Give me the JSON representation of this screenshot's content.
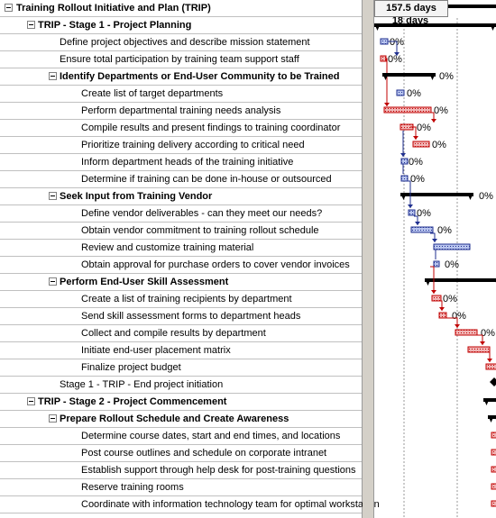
{
  "header": {
    "duration": "157.5 days",
    "duration_partial": "18 days"
  },
  "colors": {
    "summary": "#000000",
    "task_red": "#c00000",
    "task_blue": "#1f2f8f",
    "grid_line": "#c0c0c0"
  },
  "rows": [
    {
      "label": "Training Rollout Initiative and Plan (TRIP)",
      "summary": true,
      "pct": ""
    },
    {
      "label": "TRIP - Stage 1 - Project Planning",
      "summary": true,
      "pct": ""
    },
    {
      "label": "Define project objectives and describe mission statement",
      "summary": false,
      "pct": "0%"
    },
    {
      "label": "Ensure total participation by training team support staff",
      "summary": false,
      "pct": "0%"
    },
    {
      "label": "Identify Departments or End-User Community to be Trained",
      "summary": true,
      "pct": "0%"
    },
    {
      "label": "Create list of target departments",
      "summary": false,
      "pct": "0%"
    },
    {
      "label": "Perform departmental training needs analysis",
      "summary": false,
      "pct": "0%"
    },
    {
      "label": "Compile results and present findings to training coordinator",
      "summary": false,
      "pct": "0%"
    },
    {
      "label": "Prioritize training delivery according to critical need",
      "summary": false,
      "pct": "0%"
    },
    {
      "label": "Inform department heads of the training initiative",
      "summary": false,
      "pct": "0%"
    },
    {
      "label": "Determine if training can be done in-house or outsourced",
      "summary": false,
      "pct": "0%"
    },
    {
      "label": "Seek Input from Training Vendor",
      "summary": true,
      "pct": "0%"
    },
    {
      "label": "Define vendor deliverables - can they meet our needs?",
      "summary": false,
      "pct": "0%"
    },
    {
      "label": "Obtain vendor commitment to training rollout schedule",
      "summary": false,
      "pct": "0%"
    },
    {
      "label": "Review and customize training material",
      "summary": false,
      "pct": ""
    },
    {
      "label": "Obtain approval for purchase orders to cover vendor invoices",
      "summary": false,
      "pct": "0%"
    },
    {
      "label": "Perform End-User Skill Assessment",
      "summary": true,
      "pct": ""
    },
    {
      "label": "Create a list of training recipients by department",
      "summary": false,
      "pct": "0%"
    },
    {
      "label": "Send skill assessment forms to department heads",
      "summary": false,
      "pct": "0%"
    },
    {
      "label": "Collect and compile results by department",
      "summary": false,
      "pct": "0%"
    },
    {
      "label": "Initiate end-user placement matrix",
      "summary": false,
      "pct": ""
    },
    {
      "label": "Finalize project budget",
      "summary": false,
      "pct": ""
    },
    {
      "label": "Stage 1 - TRIP - End project initiation",
      "summary": false,
      "pct": ""
    },
    {
      "label": "TRIP - Stage 2 - Project Commencement",
      "summary": true,
      "pct": ""
    },
    {
      "label": "Prepare Rollout Schedule and Create Awareness",
      "summary": true,
      "pct": ""
    },
    {
      "label": "Determine course dates, start and end times, and locations",
      "summary": false,
      "pct": ""
    },
    {
      "label": "Post course outlines and schedule on corporate intranet",
      "summary": false,
      "pct": ""
    },
    {
      "label": "Establish support through help desk for post-training questions",
      "summary": false,
      "pct": ""
    },
    {
      "label": "Reserve training rooms",
      "summary": false,
      "pct": ""
    },
    {
      "label": "Coordinate with information technology team for optimal workstation",
      "summary": false,
      "pct": ""
    }
  ]
}
